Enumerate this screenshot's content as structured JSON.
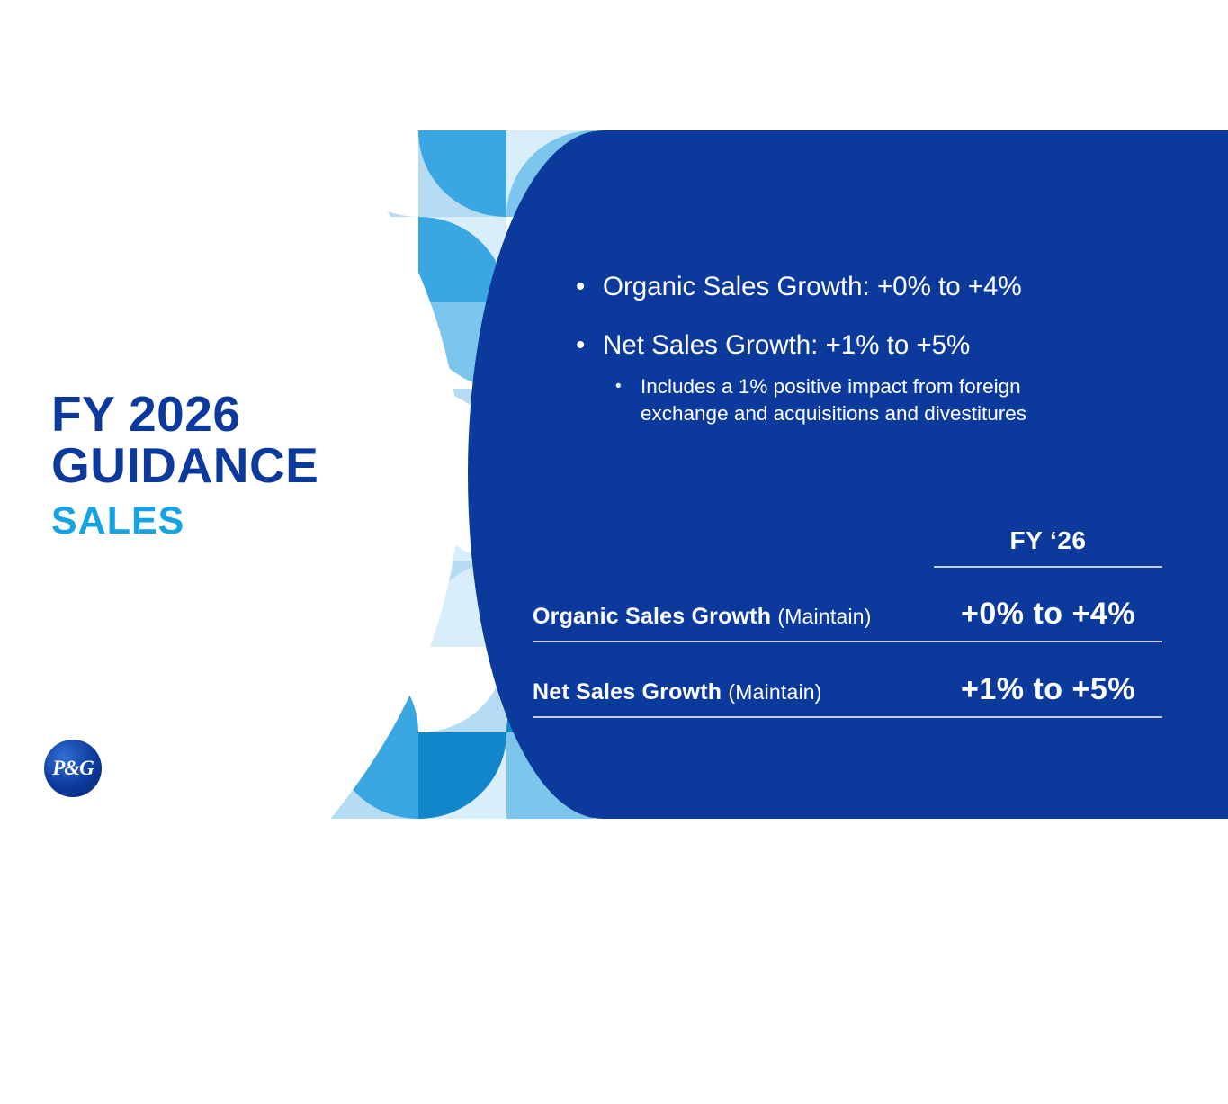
{
  "slide": {
    "title_line1": "FY 2026",
    "title_line2": "GUIDANCE",
    "subtitle": "SALES"
  },
  "logo": {
    "label": "P&G"
  },
  "panel": {
    "bullets": [
      {
        "marker": "•",
        "text": "Organic Sales Growth: +0% to +4%"
      },
      {
        "marker": "•",
        "text": "Net Sales Growth: +1% to +5%",
        "sub": [
          {
            "marker": "•",
            "text": "Includes a 1% positive impact from foreign exchange and acquisitions and divestitures"
          }
        ]
      }
    ],
    "table": {
      "column_header": "FY ‘26",
      "rows": [
        {
          "label": "Organic Sales Growth",
          "note": "(Maintain)",
          "value": "+0% to +4%"
        },
        {
          "label": "Net Sales Growth",
          "note": "(Maintain)",
          "value": "+1% to +5%"
        }
      ]
    }
  },
  "colors": {
    "brand-dark": "#0c3a9c",
    "brand-light": "#16a3e4",
    "panel-blue": "#0c3a9c",
    "table-line": "#c6cede",
    "pattern-pale": "#b5dcf3",
    "pattern-lighter": "#d9eefb",
    "pattern-light": "#7cc6ee",
    "pattern-mid": "#3aa7e2",
    "pattern-deep": "#1186cb"
  }
}
